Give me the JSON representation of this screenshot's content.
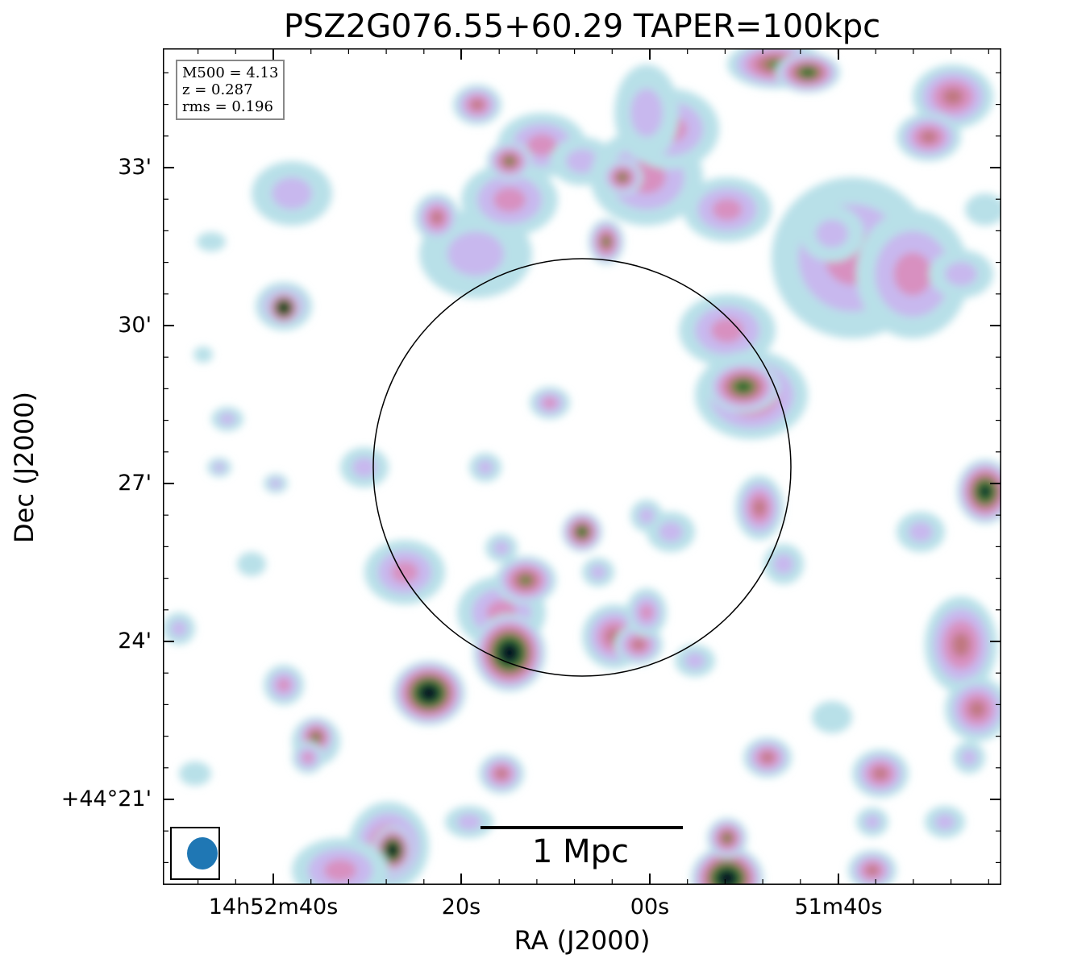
{
  "title": "PSZ2G076.55+60.29 TAPER=100kpc",
  "info": {
    "m500": "M500 = 4.13",
    "z": "z = 0.287",
    "rms": "rms = 0.196"
  },
  "axes": {
    "xlabel": "RA (J2000)",
    "ylabel": "Dec (J2000)",
    "xticks": [
      "14h52m40s",
      "20s",
      "00s",
      "51m40s"
    ],
    "yticks": [
      "33'",
      "30'",
      "27'",
      "24'",
      "+44°21'"
    ]
  },
  "scalebar": {
    "label": "1 Mpc"
  },
  "colormap": [
    "#b8e0e8",
    "#c8b8ee",
    "#d890c0",
    "#c07880",
    "#5f8a3a",
    "#1f5c30",
    "#0a1a30",
    "#000000"
  ]
}
